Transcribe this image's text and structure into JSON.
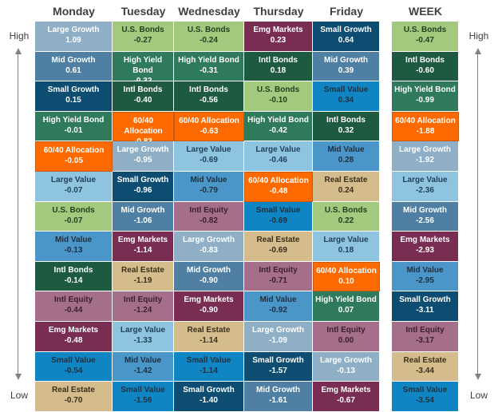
{
  "chart_data": {
    "type": "table",
    "side_labels": {
      "high": "High",
      "low": "Low"
    },
    "columns": [
      {
        "label": "Monday",
        "cells": [
          {
            "name": "Large Growth",
            "value": "1.09"
          },
          {
            "name": "Mid Growth",
            "value": "0.61"
          },
          {
            "name": "Small Growth",
            "value": "0.15"
          },
          {
            "name": "High Yield Bond",
            "value": "-0.01"
          },
          {
            "name": "60/40 Allocation",
            "value": "-0.05"
          },
          {
            "name": "Large Value",
            "value": "-0.07"
          },
          {
            "name": "U.S. Bonds",
            "value": "-0.07"
          },
          {
            "name": "Mid Value",
            "value": "-0.13"
          },
          {
            "name": "Intl Bonds",
            "value": "-0.14"
          },
          {
            "name": "Intl Equity",
            "value": "-0.44"
          },
          {
            "name": "Emg Markets",
            "value": "-0.48"
          },
          {
            "name": "Small Value",
            "value": "-0.54"
          },
          {
            "name": "Real Estate",
            "value": "-0.70"
          }
        ]
      },
      {
        "label": "Tuesday",
        "cells": [
          {
            "name": "U.S. Bonds",
            "value": "-0.27"
          },
          {
            "name": "High Yield Bond",
            "value": "-0.32"
          },
          {
            "name": "Intl Bonds",
            "value": "-0.40"
          },
          {
            "name": "60/40 Allocation",
            "value": "-0.83"
          },
          {
            "name": "Large Growth",
            "value": "-0.95"
          },
          {
            "name": "Small Growth",
            "value": "-0.96"
          },
          {
            "name": "Mid Growth",
            "value": "-1.06"
          },
          {
            "name": "Emg Markets",
            "value": "-1.14"
          },
          {
            "name": "Real Estate",
            "value": "-1.19"
          },
          {
            "name": "Intl Equity",
            "value": "-1.24"
          },
          {
            "name": "Large Value",
            "value": "-1.33"
          },
          {
            "name": "Mid Value",
            "value": "-1.42"
          },
          {
            "name": "Small Value",
            "value": "-1.56"
          }
        ]
      },
      {
        "label": "Wednesday",
        "cells": [
          {
            "name": "U.S. Bonds",
            "value": "-0.24"
          },
          {
            "name": "High Yield Bond",
            "value": "-0.31"
          },
          {
            "name": "Intl Bonds",
            "value": "-0.56"
          },
          {
            "name": "60/40 Allocation",
            "value": "-0.63"
          },
          {
            "name": "Large Value",
            "value": "-0.69"
          },
          {
            "name": "Mid Value",
            "value": "-0.79"
          },
          {
            "name": "Intl Equity",
            "value": "-0.82"
          },
          {
            "name": "Large Growth",
            "value": "-0.83"
          },
          {
            "name": "Mid Growth",
            "value": "-0.90"
          },
          {
            "name": "Emg Markets",
            "value": "-0.90"
          },
          {
            "name": "Real Estate",
            "value": "-1.14"
          },
          {
            "name": "Small Value",
            "value": "-1.14"
          },
          {
            "name": "Small Growth",
            "value": "-1.40"
          }
        ]
      },
      {
        "label": "Thursday",
        "cells": [
          {
            "name": "Emg Markets",
            "value": "0.23"
          },
          {
            "name": "Intl Bonds",
            "value": "0.18"
          },
          {
            "name": "U.S. Bonds",
            "value": "-0.10"
          },
          {
            "name": "High Yield Bond",
            "value": "-0.42"
          },
          {
            "name": "Large Value",
            "value": "-0.46"
          },
          {
            "name": "60/40 Allocation",
            "value": "-0.48"
          },
          {
            "name": "Small Value",
            "value": "-0.69"
          },
          {
            "name": "Real Estate",
            "value": "-0.69"
          },
          {
            "name": "Intl Equity",
            "value": "-0.71"
          },
          {
            "name": "Mid Value",
            "value": "-0.92"
          },
          {
            "name": "Large Growth",
            "value": "-1.09"
          },
          {
            "name": "Small Growth",
            "value": "-1.57"
          },
          {
            "name": "Mid Growth",
            "value": "-1.61"
          }
        ]
      },
      {
        "label": "Friday",
        "cells": [
          {
            "name": "Small Growth",
            "value": "0.64"
          },
          {
            "name": "Mid Growth",
            "value": "0.39"
          },
          {
            "name": "Small Value",
            "value": "0.34"
          },
          {
            "name": "Intl Bonds",
            "value": "0.32"
          },
          {
            "name": "Mid Value",
            "value": "0.28"
          },
          {
            "name": "Real Estate",
            "value": "0.24"
          },
          {
            "name": "U.S. Bonds",
            "value": "0.22"
          },
          {
            "name": "Large Value",
            "value": "0.18"
          },
          {
            "name": "60/40 Allocation",
            "value": "0.10"
          },
          {
            "name": "High Yield Bond",
            "value": "0.07"
          },
          {
            "name": "Intl Equity",
            "value": "0.00"
          },
          {
            "name": "Large Growth",
            "value": "-0.13"
          },
          {
            "name": "Emg Markets",
            "value": "-0.67"
          }
        ]
      },
      {
        "label": "WEEK",
        "cells": [
          {
            "name": "U.S. Bonds",
            "value": "-0.47"
          },
          {
            "name": "Intl Bonds",
            "value": "-0.60"
          },
          {
            "name": "High Yield Bond",
            "value": "-0.99"
          },
          {
            "name": "60/40 Allocation",
            "value": "-1.88"
          },
          {
            "name": "Large Growth",
            "value": "-1.92"
          },
          {
            "name": "Large Value",
            "value": "-2.36"
          },
          {
            "name": "Mid Growth",
            "value": "-2.56"
          },
          {
            "name": "Emg Markets",
            "value": "-2.93"
          },
          {
            "name": "Mid Value",
            "value": "-2.95"
          },
          {
            "name": "Small Growth",
            "value": "-3.11"
          },
          {
            "name": "Intl Equity",
            "value": "-3.17"
          },
          {
            "name": "Real Estate",
            "value": "-3.44"
          },
          {
            "name": "Small Value",
            "value": "-3.54"
          }
        ]
      }
    ],
    "colors": {
      "Large Growth": "#8eafc6",
      "Mid Growth": "#4f7fa2",
      "Small Growth": "#0d4d72",
      "High Yield Bond": "#2e7a5a",
      "60/40 Allocation": "#fe6a00",
      "Large Value": "#8ec4e0",
      "U.S. Bonds": "#a3c97e",
      "Mid Value": "#4b96c8",
      "Intl Bonds": "#1e5a40",
      "Intl Equity": "#a56f8c",
      "Emg Markets": "#7a2d52",
      "Small Value": "#0f86c3",
      "Real Estate": "#d4bc8c"
    },
    "text_colors": {
      "Large Growth": "#ffffff",
      "Mid Growth": "#ffffff",
      "Small Growth": "#ffffff",
      "High Yield Bond": "#ffffff",
      "60/40 Allocation": "#ffffff",
      "Large Value": "#1f3f5a",
      "U.S. Bonds": "#1f3f1f",
      "Mid Value": "#1f2f3f",
      "Intl Bonds": "#ffffff",
      "Intl Equity": "#3a1f2a",
      "Emg Markets": "#ffffff",
      "Small Value": "#1f2f3f",
      "Real Estate": "#3a2f1a"
    },
    "highlight": "60/40 Allocation"
  }
}
